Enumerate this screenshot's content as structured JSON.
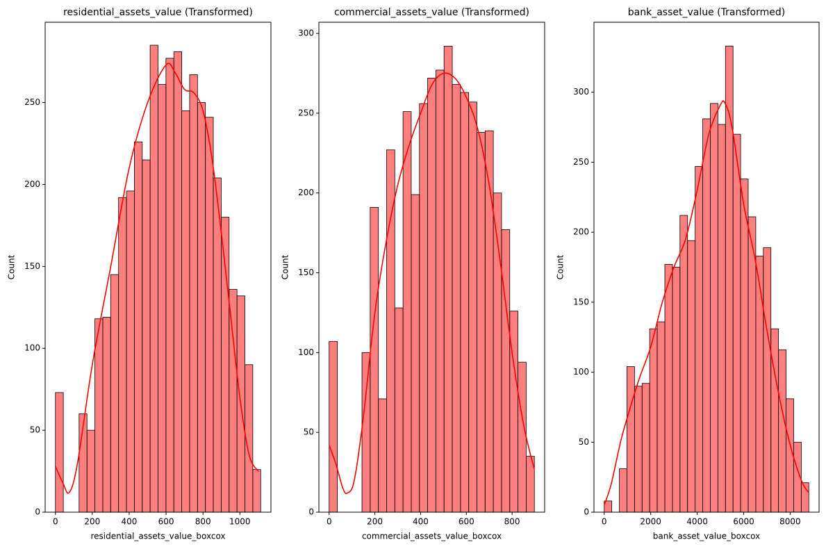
{
  "chart_data": [
    {
      "type": "histogram",
      "title": "residential_assets_value (Transformed)",
      "xlabel": "residential_assets_value_boxcox",
      "ylabel": "Count",
      "color": "#ff0000",
      "bins": [
        0,
        42.8,
        85.6,
        128.4,
        171.2,
        214,
        256.8,
        299.6,
        342.4,
        385.2,
        428,
        470.8,
        513.6,
        556.4,
        599.2,
        642,
        684.8,
        727.6,
        770.4,
        813.2,
        856,
        898.8,
        941.6,
        984.4,
        1027.2,
        1070,
        1112.8
      ],
      "counts": [
        73,
        0,
        0,
        60,
        50,
        118,
        119,
        145,
        192,
        196,
        226,
        215,
        285,
        261,
        277,
        281,
        245,
        267,
        250,
        241,
        204,
        180,
        136,
        132,
        90,
        26
      ],
      "kde": {
        "x": [
          0,
          40,
          75,
          120,
          200,
          300,
          400,
          500,
          600,
          650,
          700,
          750,
          800,
          850,
          900,
          950,
          1000,
          1050,
          1100
        ],
        "values": [
          28,
          18,
          12,
          30,
          90,
          150,
          210,
          250,
          273,
          268,
          258,
          256,
          245,
          215,
          170,
          120,
          70,
          35,
          25
        ]
      },
      "xlim": [
        -55.6,
        1168.4
      ],
      "ylim": [
        0,
        299
      ],
      "xticks": [
        0,
        200,
        400,
        600,
        800,
        1000
      ],
      "yticks": [
        0,
        50,
        100,
        150,
        200,
        250
      ]
    },
    {
      "type": "histogram",
      "title": "commercial_assets_value (Transformed)",
      "xlabel": "commercial_assets_value_boxcox",
      "ylabel": "Count",
      "color": "#ff0000",
      "bins": [
        0,
        35.9,
        71.8,
        107.7,
        143.6,
        179.5,
        215.4,
        251.3,
        287.2,
        323.1,
        359,
        394.9,
        430.8,
        466.7,
        502.6,
        538.5,
        574.4,
        610.3,
        646.2,
        682.1,
        718,
        753.9,
        789.8,
        825.7,
        861.6,
        897.5
      ],
      "counts": [
        107,
        0,
        0,
        0,
        100,
        191,
        71,
        227,
        128,
        251,
        199,
        256,
        272,
        277,
        292,
        268,
        263,
        257,
        238,
        239,
        200,
        177,
        126,
        94,
        35
      ],
      "kde": {
        "x": [
          0,
          30,
          60,
          80,
          110,
          150,
          200,
          250,
          300,
          350,
          400,
          450,
          500,
          550,
          600,
          650,
          700,
          750,
          800,
          850,
          897
        ],
        "values": [
          42,
          30,
          15,
          12,
          20,
          60,
          125,
          170,
          205,
          230,
          250,
          268,
          275,
          272,
          260,
          240,
          205,
          155,
          100,
          55,
          27
        ]
      },
      "xlim": [
        -44.9,
        942.4
      ],
      "ylim": [
        0,
        307
      ],
      "xticks": [
        0,
        200,
        400,
        600,
        800
      ],
      "yticks": [
        0,
        50,
        100,
        150,
        200,
        250,
        300
      ]
    },
    {
      "type": "histogram",
      "title": "bank_asset_value (Transformed)",
      "xlabel": "bank_asset_value_boxcox",
      "ylabel": "Count",
      "color": "#ff0000",
      "bins": [
        0,
        326,
        652,
        978,
        1304,
        1630,
        1956,
        2282,
        2608,
        2934,
        3260,
        3586,
        3912,
        4238,
        4564,
        4890,
        5216,
        5542,
        5868,
        6194,
        6520,
        6846,
        7172,
        7498,
        7824,
        8150,
        8476,
        8802
      ],
      "counts": [
        8,
        0,
        31,
        104,
        90,
        92,
        131,
        136,
        177,
        175,
        212,
        194,
        247,
        281,
        292,
        277,
        333,
        270,
        238,
        211,
        183,
        189,
        131,
        116,
        81,
        50,
        21
      ],
      "kde": {
        "x": [
          0,
          300,
          700,
          1000,
          1500,
          2000,
          2500,
          3000,
          3500,
          4000,
          4500,
          5000,
          5200,
          5500,
          6000,
          6500,
          7000,
          7500,
          8000,
          8500,
          8800
        ],
        "values": [
          5,
          20,
          50,
          68,
          95,
          118,
          150,
          175,
          195,
          230,
          270,
          291,
          292,
          275,
          220,
          180,
          130,
          85,
          48,
          22,
          14
        ]
      },
      "xlim": [
        -440,
        9242
      ],
      "ylim": [
        0,
        350
      ],
      "xticks": [
        0,
        2000,
        4000,
        6000,
        8000
      ],
      "yticks": [
        0,
        50,
        100,
        150,
        200,
        250,
        300
      ]
    }
  ]
}
